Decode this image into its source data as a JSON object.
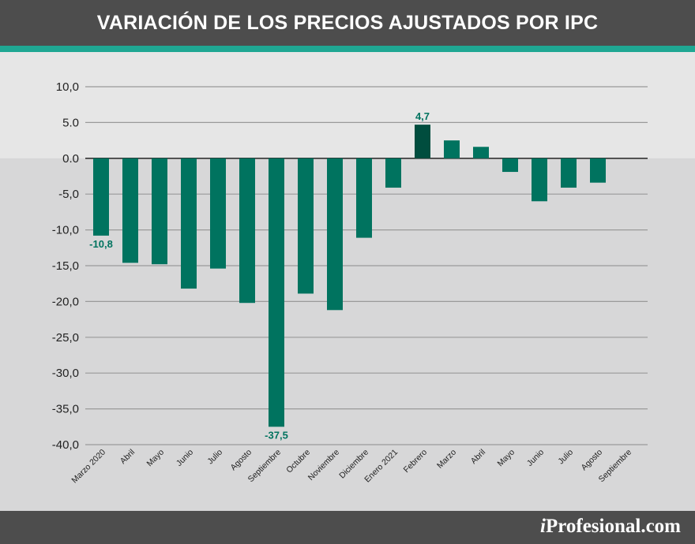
{
  "header": {
    "title": "VARIACIÓN DE LOS PRECIOS AJUSTADOS POR IPC"
  },
  "brand": {
    "prefix": "i",
    "name": "Profesional.com"
  },
  "colors": {
    "header_bg": "#4d4d4d",
    "accent": "#1fa793",
    "bar": "#00735f",
    "bar_highlight": "#004d3e",
    "label_text": "#00735f",
    "upper_bg": "#e6e6e6",
    "lower_bg": "#d7d7d8",
    "gridline": "#9a9a9a"
  },
  "chart_data": {
    "type": "bar",
    "title": "VARIACIÓN DE LOS PRECIOS AJUSTADOS POR IPC",
    "categories": [
      "Marzo 2020",
      "Abril",
      "Mayo",
      "Junio",
      "Julio",
      "Agosto",
      "Septiembre",
      "Octubre",
      "Noviembre",
      "Diciembre",
      "Enero 2021",
      "Febrero",
      "Marzo",
      "Abril",
      "Mayo",
      "Junio",
      "Julio",
      "Agosto",
      "Septiembre"
    ],
    "values": [
      -10.8,
      -14.6,
      -14.8,
      -18.2,
      -15.4,
      -20.2,
      -37.5,
      -18.9,
      -21.2,
      -11.1,
      -4.1,
      4.7,
      2.5,
      1.6,
      -1.9,
      -6.0,
      -4.1,
      -3.4,
      null
    ],
    "yticks": [
      "10,0",
      "5.0",
      "0.0",
      "-5,0",
      "-10,0",
      "-15,0",
      "-20,0",
      "-25,0",
      "-30,0",
      "-35,0",
      "-40,0"
    ],
    "ylim": [
      -40,
      10
    ],
    "data_labels": [
      {
        "index": 0,
        "text": "-10,8"
      },
      {
        "index": 6,
        "text": "-37,5"
      },
      {
        "index": 11,
        "text": "4,7"
      }
    ],
    "highlight_index": 11,
    "grid": true,
    "legend": "none"
  }
}
